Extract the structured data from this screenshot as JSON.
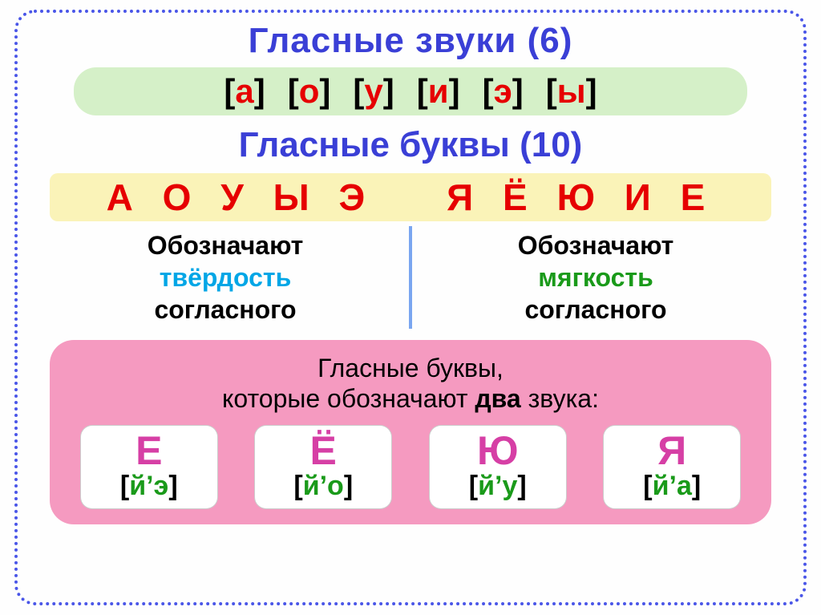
{
  "title_sounds": "Гласные звуки (6)",
  "sounds_bar": {
    "items": [
      "а",
      "о",
      "у",
      "и",
      "э",
      "ы"
    ],
    "background": "#d5f0c8",
    "letter_color": "#e60000",
    "bracket_color": "#000000"
  },
  "title_letters": "Гласные буквы (10)",
  "letters_bar": {
    "hard_group": "А О У Ы Э",
    "soft_group": "Я Ё Ю И Е",
    "background": "#faf3b8",
    "color": "#e60000"
  },
  "desc": {
    "left": {
      "line1": "Обозначают",
      "line2": "твёрдость",
      "line3": "согласного",
      "accent_color": "#00a6e6"
    },
    "right": {
      "line1": "Обозначают",
      "line2": "мягкость",
      "line3": "согласного",
      "accent_color": "#1a9a1a"
    },
    "divider_color": "#7aa6f0"
  },
  "pink": {
    "background": "#f59ac0",
    "title_line1": "Гласные буквы,",
    "title_line2_a": "которые обозначают ",
    "title_line2_b": "два",
    "title_line2_c": " звука:",
    "cards": [
      {
        "letter": "Е",
        "phon": "й’э"
      },
      {
        "letter": "Ё",
        "phon": "й’о"
      },
      {
        "letter": "Ю",
        "phon": "й’у"
      },
      {
        "letter": "Я",
        "phon": "й’а"
      }
    ],
    "card_letter_color": "#d63fa5",
    "phon_color": "#1a9a1a"
  },
  "frame_border_color": "#4a56e8",
  "title_color": "#3a3fd6"
}
